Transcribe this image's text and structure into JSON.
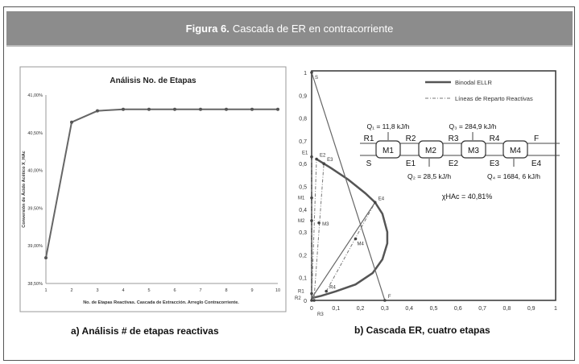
{
  "figure": {
    "label": "Figura 6.",
    "title": "Cascada de ER en contracorriente"
  },
  "captions": {
    "a": "a) Análisis # de etapas reactivas",
    "b": "b) Cascada ER, cuatro etapas"
  },
  "chart_data": [
    {
      "type": "line",
      "title": "Análisis No. de Etapas",
      "xlabel": "No. de Etapas Reactivas. Cascada de Extracción. Arreglo Contracorriente.",
      "ylabel": "Conversión de Ácido Acético X_HAc",
      "x": [
        1,
        2,
        3,
        4,
        5,
        6,
        7,
        8,
        9,
        10
      ],
      "values": [
        38.84,
        40.64,
        40.79,
        40.81,
        40.81,
        40.81,
        40.81,
        40.81,
        40.81,
        40.81
      ],
      "ylim": [
        38.5,
        41.0
      ],
      "yticks": [
        "38,50%",
        "39,00%",
        "39,50%",
        "40,00%",
        "40,50%",
        "41,00%"
      ],
      "xticks": [
        "1",
        "2",
        "3",
        "4",
        "5",
        "6",
        "7",
        "8",
        "9",
        "10"
      ],
      "color": "#666666"
    },
    {
      "type": "line",
      "title": "",
      "xlim": [
        0,
        1
      ],
      "ylim": [
        0,
        1
      ],
      "xticks": [
        "0",
        "0,1",
        "0,2",
        "0,3",
        "0,4",
        "0,5",
        "0,6",
        "0,7",
        "0,8",
        "0,9",
        "1"
      ],
      "yticks": [
        "0",
        "0,1",
        "0,2",
        "0,3",
        "0,4",
        "0,5",
        "0,6",
        "0,7",
        "0,8",
        "0,9",
        "1"
      ],
      "legend": [
        "Binodal ELLR",
        "Líneas de Reparto Reactivas"
      ],
      "binodal": [
        [
          0.02,
          0.62
        ],
        [
          0.08,
          0.58
        ],
        [
          0.15,
          0.53
        ],
        [
          0.22,
          0.47
        ],
        [
          0.26,
          0.43
        ],
        [
          0.29,
          0.38
        ],
        [
          0.31,
          0.3
        ],
        [
          0.31,
          0.25
        ],
        [
          0.29,
          0.18
        ],
        [
          0.25,
          0.12
        ],
        [
          0.18,
          0.07
        ],
        [
          0.1,
          0.04
        ],
        [
          0.04,
          0.02
        ],
        [
          0,
          0.01
        ]
      ],
      "tie_lines": [
        [
          [
            0,
            0.03
          ],
          [
            0,
            0.63
          ]
        ],
        [
          [
            0,
            0.01
          ],
          [
            0.02,
            0.62
          ]
        ],
        [
          [
            0.01,
            0.01
          ],
          [
            0.05,
            0.6
          ]
        ],
        [
          [
            0.06,
            0.04
          ],
          [
            0.26,
            0.43
          ]
        ]
      ],
      "lines": [
        [
          [
            0,
            1
          ],
          [
            0.3,
            0
          ]
        ],
        [
          [
            0,
            0.01
          ],
          [
            0.26,
            0.43
          ]
        ]
      ],
      "points": [
        {
          "label": "S",
          "x": 0,
          "y": 1
        },
        {
          "label": "F",
          "x": 0.3,
          "y": 0
        },
        {
          "label": "E1",
          "x": 0,
          "y": 0.63
        },
        {
          "label": "E2",
          "x": 0.02,
          "y": 0.62
        },
        {
          "label": "E3",
          "x": 0.05,
          "y": 0.6
        },
        {
          "label": "E4",
          "x": 0.26,
          "y": 0.43
        },
        {
          "label": "M1",
          "x": 0,
          "y": 0.45
        },
        {
          "label": "M2",
          "x": 0,
          "y": 0.35
        },
        {
          "label": "M3",
          "x": 0.03,
          "y": 0.34
        },
        {
          "label": "M4",
          "x": 0.18,
          "y": 0.27
        },
        {
          "label": "R1",
          "x": 0,
          "y": 0.03
        },
        {
          "label": "R2",
          "x": 0,
          "y": 0
        },
        {
          "label": "R3",
          "x": 0.01,
          "y": 0
        },
        {
          "label": "R4",
          "x": 0.06,
          "y": 0.04
        }
      ],
      "diagram": {
        "modules": [
          "M1",
          "M2",
          "M3",
          "M4"
        ],
        "top": [
          "R1",
          "R2",
          "R3",
          "R4",
          "F"
        ],
        "bottom": [
          "S",
          "E1",
          "E2",
          "E3",
          "E4"
        ],
        "q": [
          "Q₁ = 11,8 kJ/h",
          "Q₂ = 28,5 kJ/h",
          "Q₃ = 284,9 kJ/h",
          "Q₄ = 1684, 6 kJ/h"
        ],
        "conversion": "χHAc = 40,81%"
      }
    }
  ]
}
